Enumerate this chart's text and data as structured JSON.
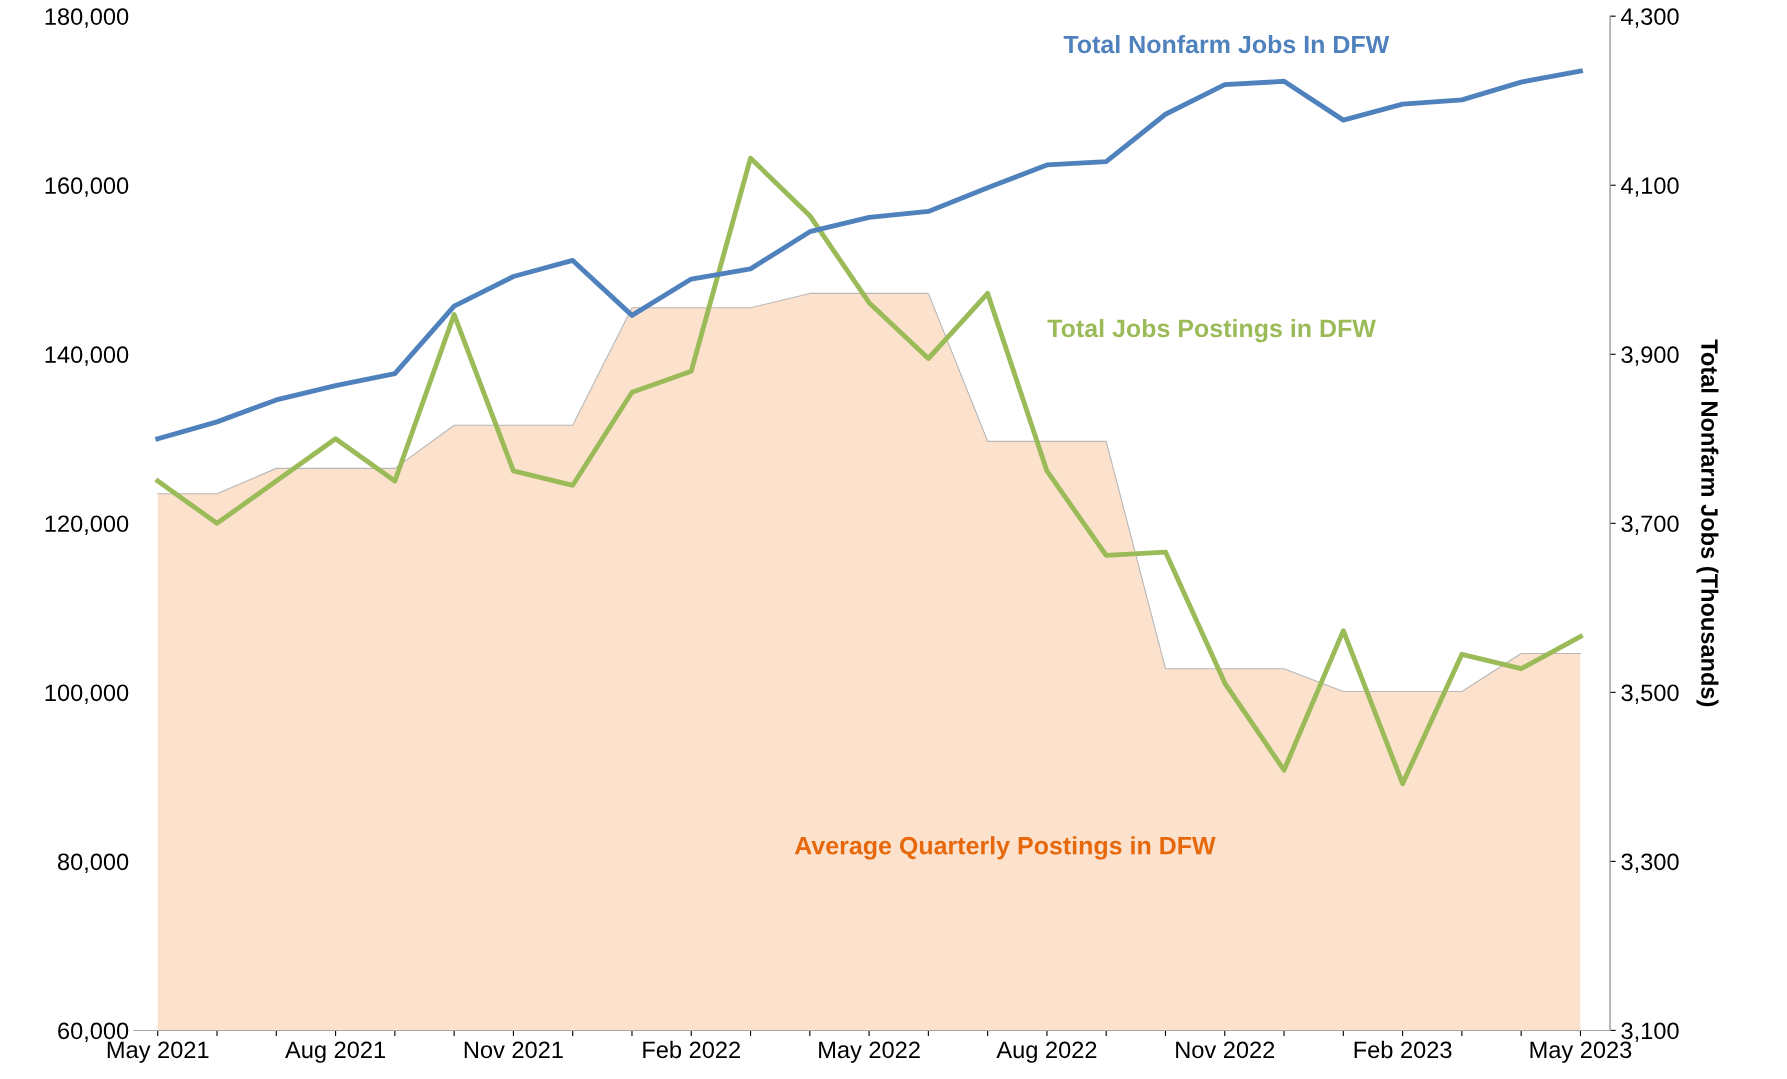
{
  "chart_data": {
    "type": "line",
    "categories": [
      "May 2021",
      null,
      null,
      "Aug 2021",
      null,
      null,
      "Nov 2021",
      null,
      null,
      "Feb 2022",
      null,
      null,
      "May 2022",
      null,
      null,
      "Aug 2022",
      null,
      null,
      "Nov 2022",
      null,
      null,
      "Feb 2023",
      null,
      null,
      "May 2023"
    ],
    "series": [
      {
        "name": "Average Quarterly Postings in DFW",
        "type": "area",
        "color": "#fce1cd",
        "values": [
          123500,
          123500,
          126500,
          126500,
          126500,
          131600,
          131600,
          131600,
          145500,
          145500,
          145500,
          147200,
          147200,
          147200,
          129700,
          129700,
          129700,
          102800,
          102800,
          102800,
          100100,
          100100,
          100100,
          104600,
          104600
        ]
      },
      {
        "name": "Total Jobs Postings in DFW",
        "color": "#9bbb59",
        "values": [
          125000,
          120000,
          125000,
          130000,
          125000,
          144700,
          126200,
          124500,
          135500,
          138000,
          163200,
          156400,
          146100,
          139500,
          147200,
          126200,
          116200,
          116600,
          101100,
          90800,
          107300,
          89200,
          104500,
          102800,
          106600
        ]
      },
      {
        "name": "Total Nonfarm Jobs In DFW",
        "type": "line",
        "axis": "y2",
        "color": "#4f81bd",
        "values": [
          3800,
          3820,
          3846,
          3863,
          3877,
          3957,
          3992,
          4011,
          3946,
          3989,
          4001,
          4045,
          4062,
          4069,
          4097,
          4124,
          4128,
          4184,
          4219,
          4223,
          4177,
          4196,
          4201,
          4222,
          4235
        ]
      }
    ],
    "ylim": [
      60000,
      180000
    ],
    "yticks": [
      {
        "value": 60000,
        "label": "60,000"
      },
      {
        "value": 80000,
        "label": "80,000"
      },
      {
        "value": 100000,
        "label": "100,000"
      },
      {
        "value": 120000,
        "label": "120,000"
      },
      {
        "value": 140000,
        "label": "140,000"
      },
      {
        "value": 160000,
        "label": "160,000"
      },
      {
        "value": 180000,
        "label": "180,000"
      }
    ],
    "y2lim": [
      3100,
      4300
    ],
    "y2ticks": [
      {
        "value": 3100,
        "label": "3,100"
      },
      {
        "value": 3300,
        "label": "3,300"
      },
      {
        "value": 3500,
        "label": "3,500"
      },
      {
        "value": 3700,
        "label": "3,700"
      },
      {
        "value": 3900,
        "label": "3,900"
      },
      {
        "value": 4100,
        "label": "4,100"
      },
      {
        "value": 4300,
        "label": "4,300"
      }
    ],
    "y2label": "Total Nonfarm Jobs (Thousands)",
    "grid": false,
    "legend": false
  }
}
